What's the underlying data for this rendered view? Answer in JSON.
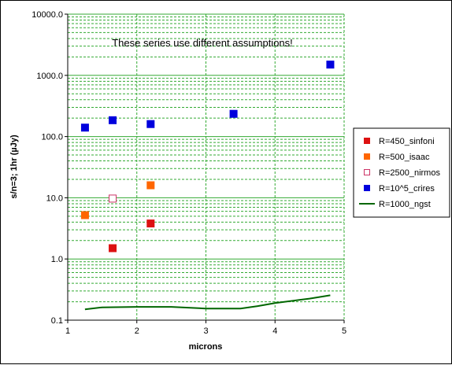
{
  "chart_data": {
    "type": "scatter",
    "title": "",
    "xlabel": "microns",
    "ylabel": "s/n=3; 1hr (µJy)",
    "xlim": [
      1,
      5
    ],
    "ylim": [
      0.1,
      10000
    ],
    "y_scale": "log",
    "x_ticks": [
      "1",
      "2",
      "3",
      "4",
      "5"
    ],
    "y_ticks": [
      "0.1",
      "1.0",
      "10.0",
      "100.0",
      "1000.0",
      "10000.0"
    ],
    "grid": true,
    "legend_position": "right",
    "annotation": "These series use different assumptions!",
    "series": [
      {
        "name": "R=450_sinfoni",
        "type": "scatter",
        "marker": "filled-square",
        "color": "#dd1111",
        "points": [
          [
            1.65,
            1.5
          ],
          [
            2.2,
            3.8
          ]
        ]
      },
      {
        "name": "R=500_isaac",
        "type": "scatter",
        "marker": "filled-square",
        "color": "#ff6600",
        "points": [
          [
            1.25,
            5.2
          ],
          [
            2.2,
            16
          ]
        ]
      },
      {
        "name": "R=2500_nirmos",
        "type": "scatter",
        "marker": "hollow-square",
        "color": "#cc3366",
        "points": [
          [
            1.65,
            9.7
          ]
        ]
      },
      {
        "name": "R=10^5_crires",
        "type": "scatter",
        "marker": "filled-square",
        "color": "#0000dd",
        "points": [
          [
            1.25,
            140
          ],
          [
            1.65,
            185
          ],
          [
            2.2,
            160
          ],
          [
            3.4,
            235
          ],
          [
            4.8,
            1500
          ]
        ]
      },
      {
        "name": "R=1000_ngst",
        "type": "line",
        "color": "#006600",
        "points": [
          [
            1.25,
            0.15
          ],
          [
            1.5,
            0.162
          ],
          [
            2.0,
            0.165
          ],
          [
            2.5,
            0.165
          ],
          [
            3.0,
            0.155
          ],
          [
            3.5,
            0.155
          ],
          [
            3.75,
            0.17
          ],
          [
            4.0,
            0.19
          ],
          [
            4.5,
            0.225
          ],
          [
            4.8,
            0.255
          ]
        ]
      }
    ]
  }
}
